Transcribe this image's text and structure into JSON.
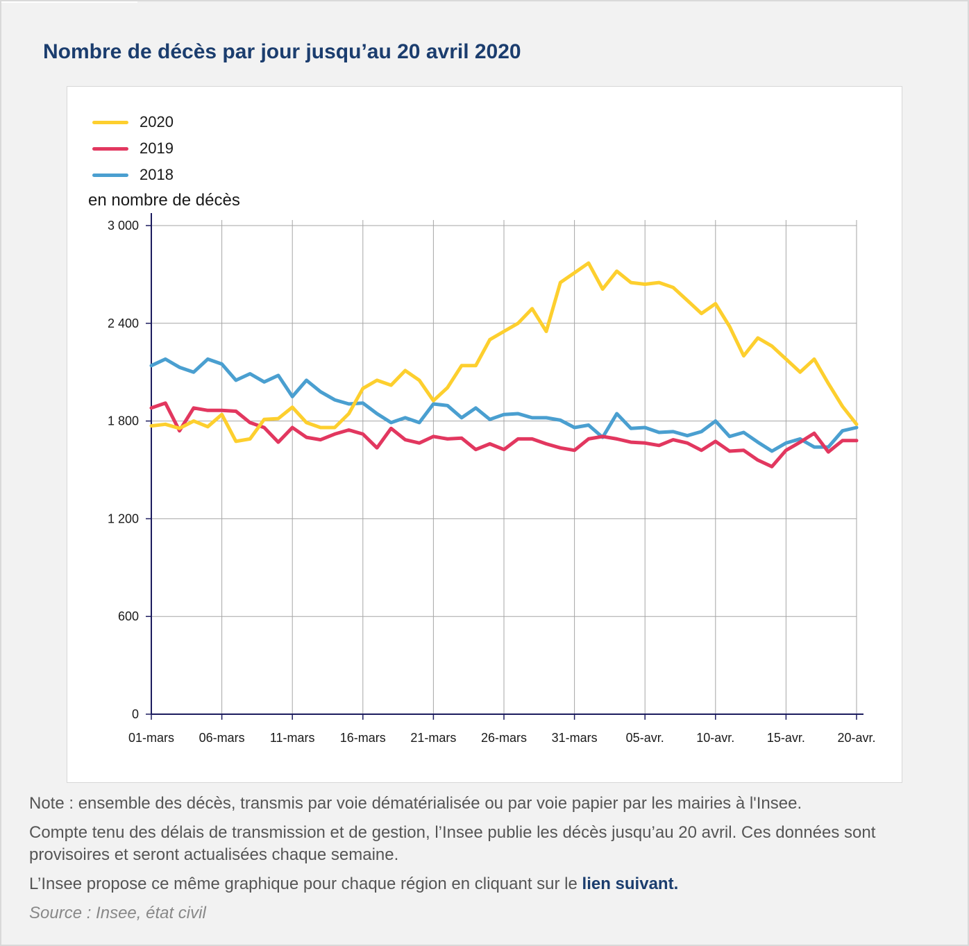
{
  "title": "Nombre de décès par jour jusqu’au 20 avril 2020",
  "notes": {
    "line1": "Note : ensemble des décès, transmis par voie dématérialisée ou par voie papier par les mairies à l'Insee.",
    "line2": "Compte tenu des délais de transmission et de gestion, l’Insee publie les décès jusqu’au 20 avril. Ces données sont provisoires et seront actualisées chaque semaine.",
    "line3_text": "L’Insee propose ce même graphique pour chaque région en cliquant sur le ",
    "line3_link": "lien suivant.",
    "source": "Source : Insee, état civil"
  },
  "colors": {
    "2020": "#fdcf2e",
    "2019": "#e2375f",
    "2018": "#4a9fd0",
    "axis": "#1b1b5e",
    "grid": "#a6a6a6"
  },
  "chart_data": {
    "type": "line",
    "title": "Nombre de décès par jour jusqu’au 20 avril 2020",
    "ylabel": "en nombre de décès",
    "xlabel": "",
    "ylim": [
      0,
      3000
    ],
    "yticks": [
      0,
      600,
      1200,
      1800,
      2400,
      3000
    ],
    "ytick_labels": [
      "0",
      "600",
      "1 200",
      "1 800",
      "2 400",
      "3 000"
    ],
    "xtick_labels": [
      "01-mars",
      "06-mars",
      "11-mars",
      "16-mars",
      "21-mars",
      "26-mars",
      "31-mars",
      "05-avr.",
      "10-avr.",
      "15-avr.",
      "20-avr."
    ],
    "x": [
      "01-mars",
      "02-mars",
      "03-mars",
      "04-mars",
      "05-mars",
      "06-mars",
      "07-mars",
      "08-mars",
      "09-mars",
      "10-mars",
      "11-mars",
      "12-mars",
      "13-mars",
      "14-mars",
      "15-mars",
      "16-mars",
      "17-mars",
      "18-mars",
      "19-mars",
      "20-mars",
      "21-mars",
      "22-mars",
      "23-mars",
      "24-mars",
      "25-mars",
      "26-mars",
      "27-mars",
      "28-mars",
      "29-mars",
      "30-mars",
      "31-mars",
      "01-avr.",
      "02-avr.",
      "03-avr.",
      "04-avr.",
      "05-avr.",
      "06-avr.",
      "07-avr.",
      "08-avr.",
      "09-avr.",
      "10-avr.",
      "11-avr.",
      "12-avr.",
      "13-avr.",
      "14-avr.",
      "15-avr.",
      "16-avr.",
      "17-avr.",
      "18-avr.",
      "19-avr.",
      "20-avr."
    ],
    "grid": true,
    "legend_position": "top-left",
    "series": [
      {
        "name": "2020",
        "values": [
          1770,
          1780,
          1755,
          1800,
          1765,
          1840,
          1675,
          1690,
          1810,
          1815,
          1885,
          1790,
          1760,
          1760,
          1845,
          2000,
          2050,
          2020,
          2110,
          2050,
          1925,
          2005,
          2140,
          2140,
          2300,
          2350,
          2400,
          2490,
          2350,
          2650,
          2710,
          2770,
          2610,
          2720,
          2650,
          2640,
          2650,
          2620,
          2540,
          2460,
          2520,
          2380,
          2200,
          2310,
          2260,
          2180,
          2100,
          2180,
          2030,
          1890,
          1780
        ]
      },
      {
        "name": "2019",
        "values": [
          1880,
          1910,
          1740,
          1880,
          1865,
          1865,
          1860,
          1790,
          1760,
          1670,
          1760,
          1700,
          1685,
          1720,
          1745,
          1720,
          1635,
          1755,
          1685,
          1665,
          1705,
          1690,
          1695,
          1625,
          1660,
          1625,
          1690,
          1690,
          1660,
          1635,
          1620,
          1690,
          1705,
          1690,
          1670,
          1665,
          1650,
          1685,
          1665,
          1620,
          1675,
          1615,
          1620,
          1560,
          1520,
          1620,
          1670,
          1725,
          1610,
          1680,
          1680
        ]
      },
      {
        "name": "2018",
        "values": [
          2140,
          2180,
          2130,
          2100,
          2180,
          2150,
          2050,
          2090,
          2040,
          2080,
          1950,
          2050,
          1980,
          1930,
          1905,
          1910,
          1845,
          1790,
          1820,
          1790,
          1905,
          1895,
          1820,
          1880,
          1810,
          1840,
          1845,
          1820,
          1820,
          1805,
          1760,
          1775,
          1700,
          1845,
          1755,
          1760,
          1730,
          1735,
          1710,
          1735,
          1800,
          1705,
          1730,
          1670,
          1615,
          1665,
          1690,
          1640,
          1640,
          1740,
          1760
        ]
      }
    ]
  }
}
